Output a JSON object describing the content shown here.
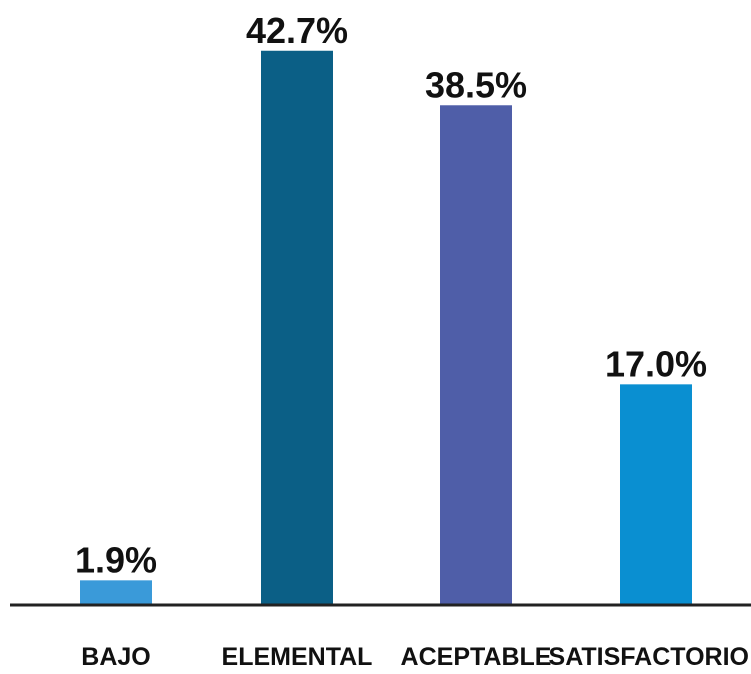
{
  "chart_data": {
    "type": "bar",
    "categories": [
      "BAJO",
      "ELEMENTAL",
      "ACEPTABLE",
      "SATISFACTORIO"
    ],
    "values": [
      1.9,
      42.7,
      38.5,
      17.0
    ],
    "value_labels": [
      "1.9%",
      "42.7%",
      "38.5%",
      "17.0%"
    ],
    "colors": [
      "#3a9ad9",
      "#0b5f86",
      "#4f5ea8",
      "#0a8fd1"
    ],
    "title": "",
    "xlabel": "",
    "ylabel": "",
    "ylim": [
      0,
      45
    ],
    "grid": false,
    "legend": "none"
  }
}
